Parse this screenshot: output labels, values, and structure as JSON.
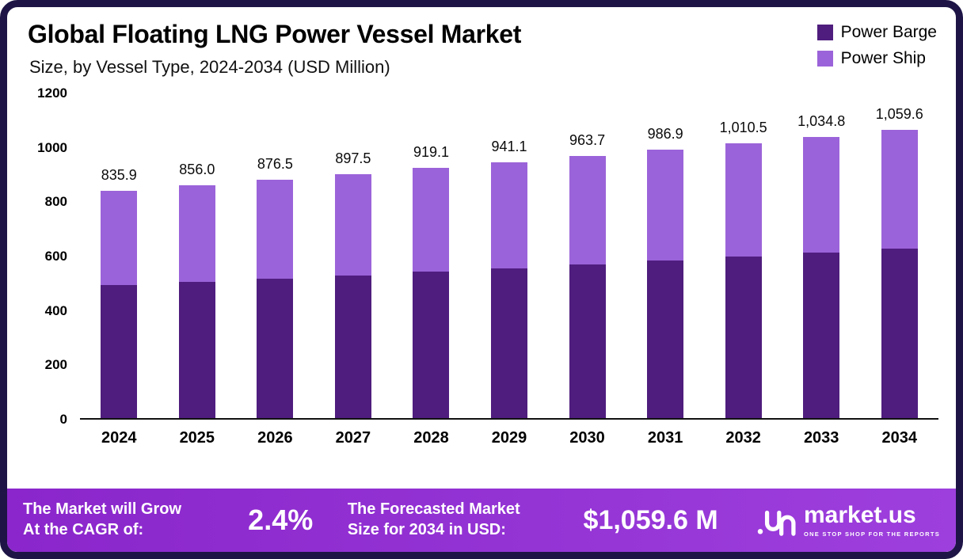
{
  "header": {
    "title": "Global Floating LNG Power Vessel Market",
    "subtitle": "Size, by Vessel Type, 2024-2034 (USD Million)"
  },
  "legend": [
    {
      "label": "Power Barge",
      "color": "#4f1d7e"
    },
    {
      "label": "Power Ship",
      "color": "#9b63d9"
    }
  ],
  "chart_data": {
    "type": "bar",
    "stacked": true,
    "title": "Global Floating LNG Power Vessel Market Size, by Vessel Type, 2024-2034 (USD Million)",
    "categories": [
      "2024",
      "2025",
      "2026",
      "2027",
      "2028",
      "2029",
      "2030",
      "2031",
      "2032",
      "2033",
      "2034"
    ],
    "series": [
      {
        "name": "Power Barge",
        "color": "#4f1d7e",
        "values": [
          490,
          500,
          512,
          525,
          540,
          551,
          565,
          580,
          595,
          608,
          622
        ]
      },
      {
        "name": "Power Ship",
        "color": "#9b63d9",
        "values": [
          345.9,
          356.0,
          364.5,
          372.5,
          379.1,
          390.1,
          398.7,
          406.9,
          415.5,
          426.8,
          437.6
        ]
      }
    ],
    "totals": [
      835.9,
      856.0,
      876.5,
      897.5,
      919.1,
      941.1,
      963.7,
      986.9,
      1010.5,
      1034.8,
      1059.6
    ],
    "total_labels": [
      "835.9",
      "856.0",
      "876.5",
      "897.5",
      "919.1",
      "941.1",
      "963.7",
      "986.9",
      "1,010.5",
      "1,034.8",
      "1,059.6"
    ],
    "xlabel": "",
    "ylabel": "",
    "ylim": [
      0,
      1200
    ],
    "yticks": [
      "1200",
      "1000",
      "800",
      "600",
      "400",
      "200",
      "0"
    ],
    "grid": false,
    "legend_position": "top-right"
  },
  "footer": {
    "cagr_label": "The Market will Grow\nAt the CAGR of:",
    "cagr_value": "2.4%",
    "forecast_label": "The Forecasted Market\nSize for 2034 in USD:",
    "forecast_value": "$1,059.6 M",
    "brand": "market.us",
    "brand_tagline": "ONE STOP SHOP FOR THE REPORTS"
  }
}
